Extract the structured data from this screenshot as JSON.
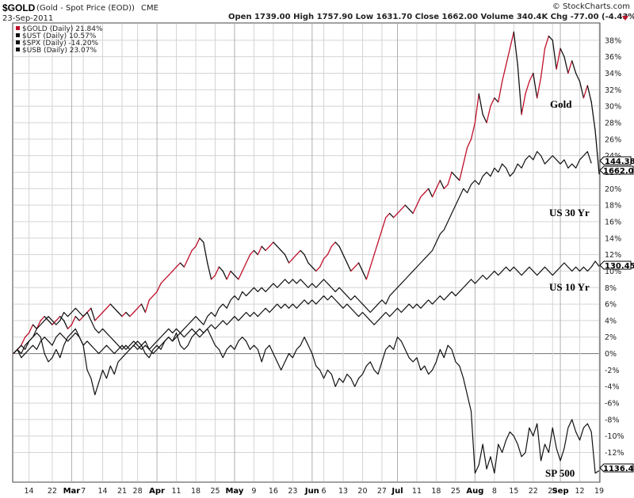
{
  "header": {
    "symbol": "$GOLD",
    "description": "(Gold - Spot Price (EOD))",
    "exchange": "CME",
    "date": "23-Sep-2011",
    "watermark": "© StockCharts.com",
    "ohlc": "Open 1739.00  High 1757.90  Low 1631.70  Close 1662.00  Volume 340.4K  Chg -77.00 (-4.43%)"
  },
  "legend": [
    "$GOLD (Daily) 21.84%",
    "$UST (Daily) 10.57%",
    "$SPX (Daily) -14.20%",
    "$USB (Daily) 23.07%"
  ],
  "annotations": {
    "gold": "Gold",
    "us30": "US 30 Yr",
    "us10": "US 10 Yr",
    "sp500": "SP 500"
  },
  "last_labels": {
    "usb": "144.38",
    "gold": "1662.00",
    "ust": "130.45",
    "spx": "1136.43"
  },
  "colors": {
    "gold_up": "#c0102a",
    "line": "#111111",
    "grid": "#d4d4d4",
    "zero": "#808080"
  },
  "chart_data": {
    "type": "line",
    "yunit": "%",
    "ylim": [
      -15.5,
      40
    ],
    "yticks": [
      -12,
      -10,
      -8,
      -6,
      -4,
      -2,
      0,
      2,
      4,
      6,
      8,
      10,
      12,
      14,
      16,
      18,
      20,
      22,
      24,
      26,
      28,
      30,
      32,
      34,
      36,
      38
    ],
    "ytick_labels": [
      "-12%",
      "-10%",
      "-8%",
      "-6%",
      "-4%",
      "-2%",
      "0%",
      "2%",
      "4%",
      "6%",
      "8%",
      "10%",
      "12%",
      "14%",
      "16%",
      "18%",
      "20%",
      "22%",
      "24%",
      "26%",
      "28%",
      "30%",
      "32%",
      "34%",
      "36%",
      "38%"
    ],
    "xlabels": [
      "14",
      "22",
      "Mar",
      "7",
      "14",
      "21",
      "28",
      "Apr",
      "11",
      "18",
      "25",
      "May",
      "9",
      "16",
      "23",
      "Jun",
      "6",
      "13",
      "20",
      "27",
      "Jul",
      "11",
      "18",
      "25",
      "Aug",
      "8",
      "15",
      "22",
      "29",
      "Sep",
      "12",
      "19"
    ],
    "xlabel_index": [
      4,
      10,
      15,
      18,
      23,
      28,
      32,
      37,
      42,
      47,
      52,
      57,
      62,
      67,
      72,
      77,
      80,
      85,
      90,
      95,
      99,
      104,
      109,
      114,
      119,
      124,
      129,
      134,
      139,
      141,
      146,
      151
    ],
    "month_labels": [
      "Mar",
      "Apr",
      "May",
      "Jun",
      "Jul",
      "Aug",
      "Sep"
    ],
    "grid": true,
    "series": [
      {
        "name": "$GOLD",
        "values": [
          0.0,
          0.5,
          1.0,
          2.0,
          2.5,
          3.5,
          3.0,
          4.0,
          4.5,
          4.0,
          3.5,
          4.0,
          4.5,
          4.0,
          3.0,
          3.5,
          4.5,
          4.0,
          4.5,
          5.0,
          5.5,
          4.0,
          4.5,
          5.0,
          5.5,
          6.0,
          5.5,
          5.0,
          4.5,
          5.0,
          4.5,
          5.0,
          5.5,
          6.0,
          5.0,
          6.5,
          7.0,
          7.5,
          8.5,
          9.0,
          9.5,
          10.0,
          10.5,
          11.0,
          10.5,
          11.5,
          12.5,
          13.0,
          14.0,
          13.5,
          11.0,
          9.0,
          9.5,
          10.5,
          10.0,
          9.0,
          10.0,
          9.5,
          9.0,
          10.0,
          11.0,
          12.0,
          12.5,
          12.0,
          13.0,
          12.5,
          13.0,
          13.5,
          13.0,
          12.5,
          12.0,
          11.0,
          11.5,
          12.0,
          12.5,
          12.0,
          11.0,
          10.5,
          10.0,
          10.5,
          11.5,
          12.0,
          13.0,
          13.5,
          13.0,
          12.0,
          11.0,
          10.0,
          10.5,
          11.0,
          10.0,
          9.0,
          10.5,
          12.0,
          13.5,
          15.0,
          16.5,
          17.0,
          16.5,
          17.0,
          17.5,
          18.0,
          17.5,
          17.0,
          18.0,
          19.0,
          19.5,
          20.0,
          19.0,
          20.0,
          21.0,
          20.0,
          20.5,
          22.0,
          21.5,
          21.0,
          23.0,
          25.0,
          26.0,
          28.0,
          31.5,
          29.0,
          28.0,
          30.0,
          31.0,
          30.5,
          33.0,
          35.0,
          37.0,
          39.0,
          35.0,
          29.0,
          31.5,
          33.0,
          34.0,
          31.0,
          33.5,
          37.0,
          38.5,
          38.0,
          34.5,
          37.0,
          36.0,
          34.0,
          35.5,
          34.0,
          33.0,
          31.0,
          32.5,
          30.5,
          27.0,
          21.8
        ]
      },
      {
        "name": "$UST",
        "values": [
          0.0,
          0.5,
          -0.5,
          0.0,
          0.5,
          1.0,
          0.5,
          1.5,
          2.0,
          1.5,
          1.0,
          2.0,
          2.5,
          2.0,
          1.5,
          2.0,
          2.5,
          2.0,
          1.0,
          1.5,
          1.0,
          0.5,
          0.0,
          0.5,
          1.0,
          0.5,
          0.0,
          0.5,
          1.0,
          0.5,
          1.0,
          1.5,
          1.0,
          0.5,
          1.0,
          0.5,
          0.0,
          0.5,
          1.0,
          1.5,
          2.0,
          1.5,
          2.0,
          2.5,
          2.0,
          2.5,
          3.0,
          2.5,
          2.0,
          2.5,
          3.0,
          3.5,
          3.0,
          3.5,
          4.0,
          3.5,
          4.0,
          4.5,
          4.0,
          4.5,
          5.0,
          4.5,
          5.0,
          4.5,
          5.0,
          5.5,
          5.0,
          5.5,
          6.0,
          5.5,
          6.0,
          5.5,
          6.0,
          5.5,
          6.0,
          6.5,
          6.0,
          6.5,
          6.0,
          6.5,
          7.0,
          6.5,
          7.0,
          6.5,
          6.0,
          5.5,
          6.0,
          5.5,
          5.0,
          4.5,
          5.0,
          4.5,
          4.0,
          3.5,
          4.0,
          4.5,
          5.0,
          4.5,
          5.0,
          5.5,
          5.0,
          5.5,
          6.0,
          5.5,
          6.0,
          5.5,
          6.0,
          6.5,
          6.0,
          6.5,
          7.0,
          6.5,
          7.0,
          7.5,
          7.0,
          7.5,
          8.0,
          8.5,
          9.0,
          8.5,
          9.0,
          9.5,
          9.0,
          9.5,
          10.0,
          9.5,
          10.0,
          10.5,
          10.0,
          10.5,
          10.0,
          9.5,
          10.0,
          10.5,
          10.0,
          9.5,
          10.0,
          10.5,
          10.0,
          9.5,
          10.0,
          10.5,
          11.0,
          10.5,
          10.0,
          10.5,
          10.0,
          10.5,
          10.0,
          10.5,
          11.2,
          10.57
        ]
      },
      {
        "name": "$SPX",
        "values": [
          0.0,
          0.5,
          1.0,
          0.5,
          1.5,
          2.0,
          2.5,
          2.0,
          0.0,
          -1.0,
          -0.5,
          0.5,
          -0.5,
          1.0,
          2.0,
          2.5,
          3.0,
          2.0,
          1.0,
          -2.0,
          -3.0,
          -5.0,
          -3.5,
          -2.0,
          -3.0,
          -1.5,
          -2.5,
          -1.0,
          -0.5,
          0.0,
          0.5,
          1.0,
          0.5,
          1.0,
          0.0,
          -0.5,
          0.5,
          1.0,
          0.5,
          1.5,
          2.0,
          1.5,
          2.5,
          1.0,
          0.5,
          1.0,
          2.0,
          2.5,
          3.0,
          2.5,
          3.0,
          2.0,
          1.0,
          0.5,
          -0.5,
          0.5,
          1.0,
          0.5,
          1.5,
          2.0,
          1.5,
          0.5,
          1.0,
          0.5,
          -1.0,
          0.5,
          1.0,
          0.0,
          -1.0,
          -2.0,
          -1.0,
          0.0,
          -0.5,
          0.5,
          1.0,
          2.0,
          1.0,
          0.0,
          -1.5,
          -2.0,
          -3.0,
          -2.0,
          -2.5,
          -4.0,
          -3.0,
          -3.5,
          -2.5,
          -3.0,
          -4.0,
          -3.0,
          -2.5,
          -1.5,
          -1.0,
          -2.0,
          -2.5,
          -1.0,
          0.5,
          1.0,
          0.5,
          2.0,
          1.5,
          0.5,
          -0.5,
          -1.0,
          -0.5,
          -2.0,
          -1.5,
          -2.5,
          -2.0,
          -1.0,
          0.5,
          -0.5,
          1.0,
          0.5,
          -1.0,
          -1.5,
          -3.0,
          -5.0,
          -7.0,
          -14.5,
          -13.5,
          -11.0,
          -14.0,
          -12.5,
          -14.5,
          -11.0,
          -12.0,
          -10.5,
          -9.5,
          -10.0,
          -11.0,
          -12.5,
          -12.0,
          -9.0,
          -10.0,
          -8.5,
          -13.0,
          -11.0,
          -12.0,
          -9.0,
          -11.5,
          -13.0,
          -11.5,
          -9.0,
          -8.0,
          -9.5,
          -10.5,
          -9.0,
          -8.5,
          -9.5,
          -14.5,
          -14.2
        ]
      },
      {
        "name": "$USB",
        "values": [
          0.0,
          0.5,
          0.0,
          1.0,
          1.5,
          2.0,
          3.0,
          3.5,
          4.0,
          4.5,
          4.0,
          3.5,
          4.0,
          5.0,
          4.5,
          5.0,
          5.5,
          5.0,
          4.5,
          5.0,
          4.0,
          3.0,
          2.5,
          3.0,
          2.5,
          2.0,
          1.5,
          1.0,
          0.5,
          1.0,
          0.5,
          1.0,
          1.5,
          1.0,
          1.5,
          0.5,
          1.0,
          1.5,
          2.0,
          2.5,
          3.0,
          2.5,
          3.0,
          2.5,
          3.0,
          3.5,
          4.0,
          4.5,
          4.0,
          3.5,
          4.5,
          5.0,
          4.5,
          5.5,
          6.0,
          5.5,
          6.5,
          7.0,
          6.5,
          7.5,
          7.0,
          7.5,
          8.0,
          7.5,
          8.0,
          7.5,
          8.0,
          8.5,
          8.0,
          8.5,
          9.0,
          8.5,
          9.0,
          8.5,
          9.0,
          8.5,
          8.0,
          8.5,
          8.0,
          8.5,
          9.0,
          8.5,
          8.0,
          7.5,
          8.0,
          7.5,
          7.0,
          6.5,
          7.0,
          6.5,
          6.0,
          5.5,
          5.0,
          5.5,
          6.0,
          6.5,
          6.0,
          7.0,
          7.5,
          8.0,
          8.5,
          9.0,
          9.5,
          10.0,
          10.5,
          11.0,
          11.5,
          12.0,
          12.5,
          13.5,
          14.5,
          15.0,
          16.0,
          17.0,
          18.0,
          19.0,
          20.0,
          19.5,
          20.5,
          21.0,
          20.5,
          21.5,
          22.0,
          21.5,
          22.5,
          22.0,
          23.0,
          22.5,
          21.5,
          22.0,
          23.0,
          22.5,
          23.5,
          24.0,
          23.5,
          24.5,
          24.0,
          23.0,
          23.5,
          24.0,
          23.5,
          23.0,
          23.5,
          22.5,
          23.0,
          22.5,
          23.5,
          24.0,
          24.5,
          23.07
        ]
      }
    ]
  }
}
